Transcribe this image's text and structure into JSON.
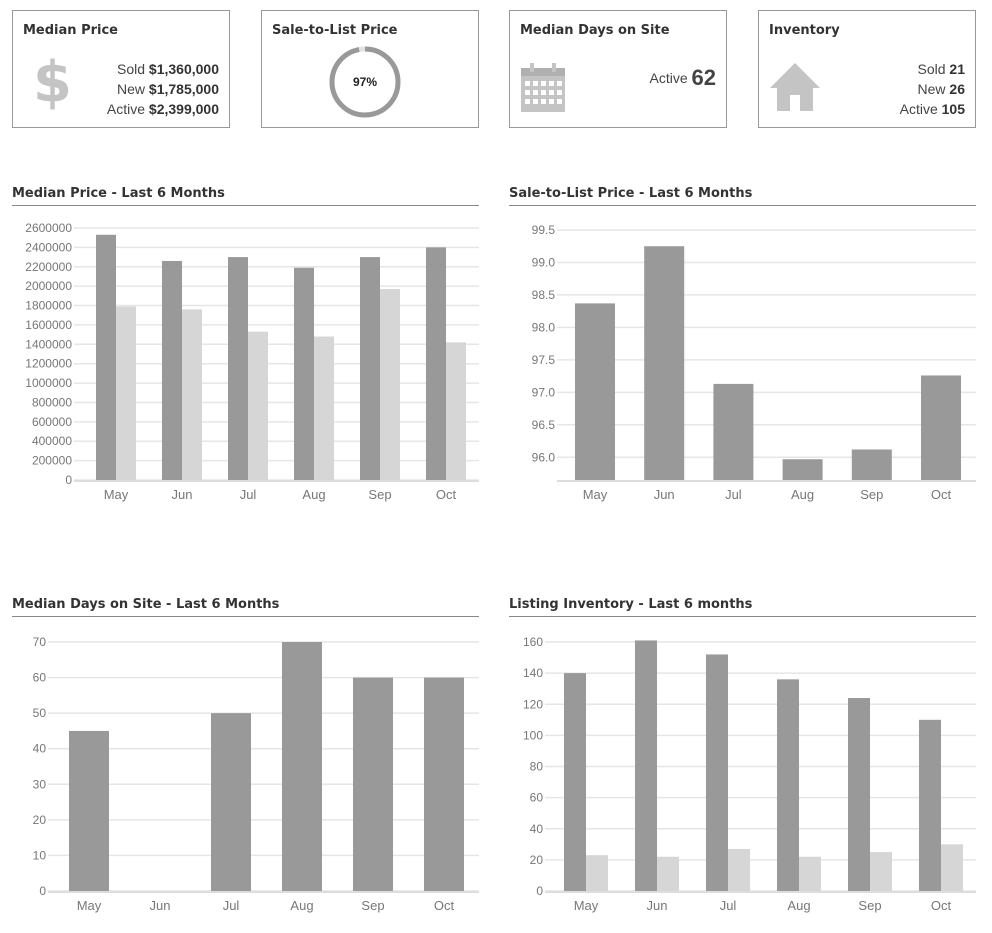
{
  "colors": {
    "bar_dark": "#999999",
    "bar_light": "#d6d6d6",
    "grid": "#e6e6e6",
    "axis_text": "#777777",
    "icon": "#c4c4c4"
  },
  "cards": {
    "median_price": {
      "title": "Median Price",
      "icon": "dollar-icon",
      "symbol": "$",
      "sold_label": "Sold",
      "sold_value": "$1,360,000",
      "new_label": "New",
      "new_value": "$1,785,000",
      "active_label": "Active",
      "active_value": "$2,399,000"
    },
    "sale_to_list": {
      "title": "Sale-to-List Price",
      "value_text": "97%",
      "value": 97
    },
    "median_days": {
      "title": "Median Days on Site",
      "icon": "calendar-icon",
      "active_label": "Active",
      "active_value": "62"
    },
    "inventory": {
      "title": "Inventory",
      "icon": "house-icon",
      "sold_label": "Sold",
      "sold_value": "21",
      "new_label": "New",
      "new_value": "26",
      "active_label": "Active",
      "active_value": "105"
    }
  },
  "chart_data": [
    {
      "id": "median_price",
      "type": "bar",
      "title": "Median Price - Last 6 Months",
      "categories": [
        "May",
        "Jun",
        "Jul",
        "Aug",
        "Sep",
        "Oct"
      ],
      "series": [
        {
          "name": "dark",
          "values": [
            2530000,
            2260000,
            2300000,
            2190000,
            2300000,
            2400000
          ]
        },
        {
          "name": "light",
          "values": [
            1790000,
            1760000,
            1530000,
            1480000,
            1970000,
            1420000
          ]
        }
      ],
      "yticks": [
        0,
        200000,
        400000,
        600000,
        800000,
        1000000,
        1200000,
        1400000,
        1600000,
        1800000,
        2000000,
        2200000,
        2400000,
        2600000
      ],
      "ylim": [
        0,
        2600000
      ]
    },
    {
      "id": "sale_to_list",
      "type": "bar",
      "title": "Sale-to-List Price - Last 6 Months",
      "categories": [
        "May",
        "Jun",
        "Jul",
        "Aug",
        "Sep",
        "Oct"
      ],
      "series": [
        {
          "name": "dark",
          "values": [
            98.37,
            99.25,
            97.13,
            95.97,
            96.12,
            97.26
          ]
        }
      ],
      "yticks": [
        "96.0",
        "96.5",
        "97.0",
        "97.5",
        "98.0",
        "98.5",
        "99.0",
        "99.5"
      ],
      "ylim": [
        95.65,
        99.5
      ]
    },
    {
      "id": "median_days",
      "type": "bar",
      "title": "Median Days on Site - Last 6 Months",
      "categories": [
        "May",
        "Jun",
        "Jul",
        "Aug",
        "Sep",
        "Oct"
      ],
      "series": [
        {
          "name": "dark",
          "values": [
            45,
            0,
            50,
            70,
            60,
            60
          ]
        }
      ],
      "yticks": [
        0,
        10,
        20,
        30,
        40,
        50,
        60,
        70
      ],
      "ylim": [
        0,
        70
      ]
    },
    {
      "id": "inventory",
      "type": "bar",
      "title": "Listing Inventory - Last 6 months",
      "categories": [
        "May",
        "Jun",
        "Jul",
        "Aug",
        "Sep",
        "Oct"
      ],
      "series": [
        {
          "name": "dark",
          "values": [
            140,
            161,
            152,
            136,
            124,
            110
          ]
        },
        {
          "name": "light",
          "values": [
            23,
            22,
            27,
            22,
            25,
            30
          ]
        }
      ],
      "yticks": [
        0,
        20,
        40,
        60,
        80,
        100,
        120,
        140,
        160
      ],
      "ylim": [
        0,
        160
      ]
    }
  ]
}
